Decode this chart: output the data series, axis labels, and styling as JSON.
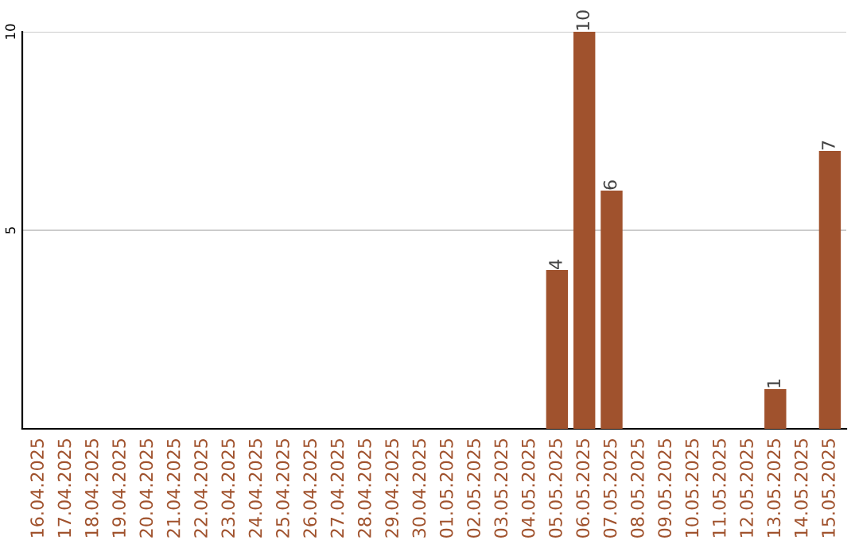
{
  "chart_data": {
    "type": "bar",
    "categories": [
      "16.04.2025",
      "17.04.2025",
      "18.04.2025",
      "19.04.2025",
      "20.04.2025",
      "21.04.2025",
      "22.04.2025",
      "23.04.2025",
      "24.04.2025",
      "25.04.2025",
      "26.04.2025",
      "27.04.2025",
      "28.04.2025",
      "29.04.2025",
      "30.04.2025",
      "01.05.2025",
      "02.05.2025",
      "03.05.2025",
      "04.05.2025",
      "05.05.2025",
      "06.05.2025",
      "07.05.2025",
      "08.05.2025",
      "09.05.2025",
      "10.05.2025",
      "11.05.2025",
      "12.05.2025",
      "13.05.2025",
      "14.05.2025",
      "15.05.2025"
    ],
    "values": [
      0,
      0,
      0,
      0,
      0,
      0,
      0,
      0,
      0,
      0,
      0,
      0,
      0,
      0,
      0,
      0,
      0,
      0,
      0,
      4,
      10,
      6,
      0,
      0,
      0,
      0,
      0,
      1,
      0,
      7
    ],
    "value_labels": [
      null,
      null,
      null,
      null,
      null,
      null,
      null,
      null,
      null,
      null,
      null,
      null,
      null,
      null,
      null,
      null,
      null,
      null,
      null,
      "4",
      "10",
      "6",
      null,
      null,
      null,
      null,
      null,
      "1",
      null,
      "7"
    ],
    "color": "#a0522d",
    "ylim": [
      0,
      10
    ],
    "yticks": [
      5,
      10
    ],
    "grid": "y",
    "legend": false
  }
}
